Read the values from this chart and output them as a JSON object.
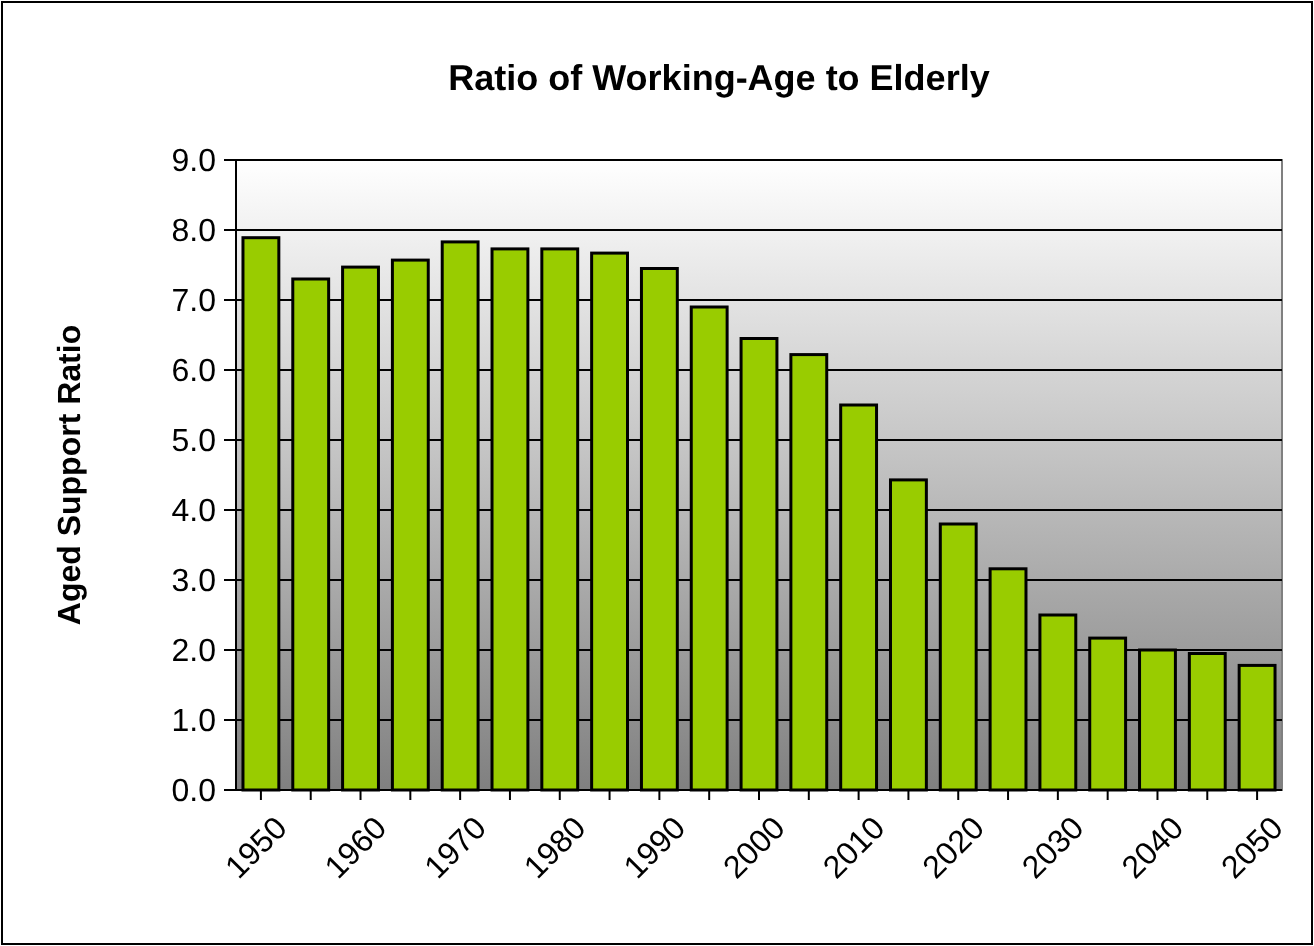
{
  "chart_data": {
    "type": "bar",
    "title": "Ratio of Working-Age to Elderly",
    "ylabel": "Aged Support Ratio",
    "categories": [
      "1950",
      null,
      "1960",
      null,
      "1970",
      null,
      "1980",
      null,
      "1990",
      null,
      "2000",
      null,
      "2010",
      null,
      "2020",
      null,
      "2030",
      null,
      "2040",
      null,
      "2050"
    ],
    "values": [
      7.89,
      7.3,
      7.47,
      7.57,
      7.83,
      7.73,
      7.73,
      7.67,
      7.45,
      6.9,
      6.45,
      6.22,
      5.5,
      4.43,
      3.8,
      3.16,
      2.5,
      2.17,
      2.0,
      1.95,
      1.78
    ],
    "color": "#99cc00",
    "ylim": [
      0,
      9
    ],
    "yticks": [
      {
        "value": 0,
        "label": "0.0"
      },
      {
        "value": 1,
        "label": "1.0"
      },
      {
        "value": 2,
        "label": "2.0"
      },
      {
        "value": 3,
        "label": "3.0"
      },
      {
        "value": 4,
        "label": "4.0"
      },
      {
        "value": 5,
        "label": "5.0"
      },
      {
        "value": 6,
        "label": "6.0"
      },
      {
        "value": 7,
        "label": "7.0"
      },
      {
        "value": 8,
        "label": "8.0"
      },
      {
        "value": 9,
        "label": "9.0"
      }
    ],
    "grid": "y"
  }
}
